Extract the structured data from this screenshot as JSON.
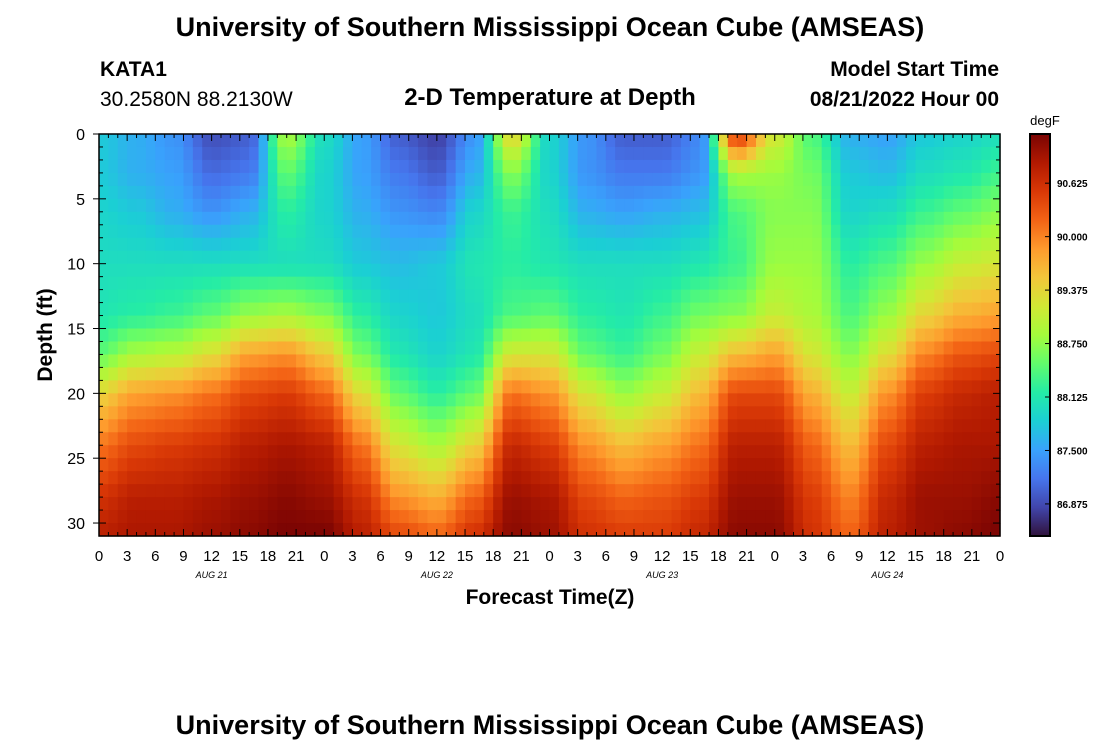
{
  "page": {
    "title": "University of Southern Mississippi Ocean Cube (AMSEAS)",
    "title_repeat": "University of Southern Mississippi Ocean Cube (AMSEAS)",
    "station_id": "KATA1",
    "location": "30.2580N  88.2130W",
    "model_start_label": "Model Start Time",
    "model_start_value": "08/21/2022 Hour 00"
  },
  "chart_data": {
    "type": "heatmap",
    "title": "2-D Temperature at Depth",
    "xlabel": "Forecast Time(Z)",
    "ylabel": "Depth (ft)",
    "x_range_hours": [
      0,
      96
    ],
    "y_range_ft": [
      0,
      31
    ],
    "x_tick_labels": [
      "0",
      "3",
      "6",
      "9",
      "12",
      "15",
      "18",
      "21",
      "0",
      "3",
      "6",
      "9",
      "12",
      "15",
      "18",
      "21",
      "0",
      "3",
      "6",
      "9",
      "12",
      "15",
      "18",
      "21",
      "0",
      "3",
      "6",
      "9",
      "12",
      "15",
      "18",
      "21",
      "0"
    ],
    "y_ticks": [
      0,
      5,
      10,
      15,
      20,
      25,
      30
    ],
    "y_tick_labels": [
      "0",
      "5",
      "10",
      "15",
      "20",
      "25",
      "30"
    ],
    "day_labels": [
      {
        "label": "AUG 21",
        "hour": 12
      },
      {
        "label": "AUG 22",
        "hour": 36
      },
      {
        "label": "AUG 23",
        "hour": 60
      },
      {
        "label": "AUG 24",
        "hour": 84
      }
    ],
    "colorbar": {
      "unit": "degF",
      "min": 86.5,
      "max": 91.2,
      "tick_labels": [
        "90.625",
        "90.000",
        "89.375",
        "88.750",
        "88.125",
        "87.500",
        "86.875"
      ],
      "tick_values": [
        90.625,
        90.0,
        89.375,
        88.75,
        88.125,
        87.5,
        86.875
      ],
      "colors": [
        "#30123b",
        "#4145ab",
        "#4675ed",
        "#39a2fc",
        "#1bcfd4",
        "#24eca6",
        "#61fc6c",
        "#a4fc3b",
        "#d1e834",
        "#f3c63a",
        "#fe9b2d",
        "#f36315",
        "#d93806",
        "#b11901",
        "#7a0403"
      ]
    },
    "profile_depths_ft": [
      0,
      3,
      6,
      10,
      14,
      17,
      20,
      24,
      28,
      31
    ],
    "time_profiles": [
      {
        "hour": 0,
        "temps": [
          87.8,
          87.8,
          87.9,
          88.0,
          88.1,
          88.5,
          89.4,
          90.1,
          90.6,
          90.8
        ]
      },
      {
        "hour": 4,
        "temps": [
          87.6,
          87.6,
          87.8,
          88.0,
          88.2,
          88.9,
          89.8,
          90.4,
          90.8,
          90.9
        ]
      },
      {
        "hour": 8,
        "temps": [
          87.4,
          87.5,
          87.6,
          88.0,
          88.3,
          89.0,
          89.9,
          90.5,
          90.8,
          90.9
        ]
      },
      {
        "hour": 12,
        "temps": [
          86.9,
          87.1,
          87.4,
          88.0,
          88.5,
          89.3,
          90.1,
          90.6,
          90.9,
          91.0
        ]
      },
      {
        "hour": 16,
        "temps": [
          87.0,
          87.2,
          87.6,
          88.0,
          88.8,
          89.8,
          90.4,
          90.8,
          91.0,
          91.1
        ]
      },
      {
        "hour": 20,
        "temps": [
          88.9,
          88.5,
          88.2,
          88.0,
          88.9,
          89.9,
          90.5,
          90.9,
          91.1,
          91.2
        ]
      },
      {
        "hour": 24,
        "temps": [
          88.0,
          87.9,
          87.9,
          88.0,
          88.7,
          89.5,
          90.2,
          90.8,
          91.0,
          91.2
        ]
      },
      {
        "hour": 28,
        "temps": [
          87.5,
          87.5,
          87.6,
          87.8,
          88.2,
          88.6,
          89.3,
          90.1,
          90.6,
          90.8
        ]
      },
      {
        "hour": 32,
        "temps": [
          87.0,
          87.2,
          87.4,
          87.7,
          87.9,
          88.1,
          88.5,
          89.2,
          89.9,
          90.4
        ]
      },
      {
        "hour": 36,
        "temps": [
          86.8,
          87.0,
          87.3,
          87.8,
          87.8,
          87.9,
          88.2,
          88.9,
          89.7,
          90.2
        ]
      },
      {
        "hour": 40,
        "temps": [
          87.4,
          87.6,
          87.9,
          88.1,
          88.0,
          88.1,
          88.5,
          89.4,
          90.2,
          90.6
        ]
      },
      {
        "hour": 44,
        "temps": [
          89.4,
          88.7,
          88.3,
          88.2,
          88.4,
          89.2,
          90.1,
          90.7,
          91.0,
          91.1
        ]
      },
      {
        "hour": 48,
        "temps": [
          87.9,
          87.9,
          88.0,
          88.1,
          88.5,
          89.2,
          89.9,
          90.5,
          90.9,
          91.0
        ]
      },
      {
        "hour": 52,
        "temps": [
          87.4,
          87.4,
          87.6,
          88.0,
          88.2,
          88.5,
          89.2,
          89.9,
          90.4,
          90.6
        ]
      },
      {
        "hour": 56,
        "temps": [
          87.0,
          87.2,
          87.5,
          88.0,
          88.1,
          88.3,
          88.8,
          89.6,
          90.2,
          90.5
        ]
      },
      {
        "hour": 60,
        "temps": [
          87.0,
          87.2,
          87.6,
          88.0,
          88.3,
          88.6,
          89.1,
          89.8,
          90.3,
          90.5
        ]
      },
      {
        "hour": 64,
        "temps": [
          87.3,
          87.4,
          87.7,
          88.1,
          88.6,
          89.1,
          89.6,
          90.1,
          90.5,
          90.7
        ]
      },
      {
        "hour": 68,
        "temps": [
          90.6,
          88.9,
          88.4,
          88.3,
          88.7,
          89.6,
          90.4,
          90.8,
          91.0,
          91.1
        ]
      },
      {
        "hour": 72,
        "temps": [
          89.2,
          88.8,
          88.7,
          88.8,
          89.1,
          89.8,
          90.4,
          90.8,
          91.0,
          91.1
        ]
      },
      {
        "hour": 76,
        "temps": [
          88.4,
          88.6,
          88.7,
          88.8,
          88.9,
          89.2,
          89.7,
          90.2,
          90.5,
          90.6
        ]
      },
      {
        "hour": 80,
        "temps": [
          87.6,
          87.8,
          87.9,
          88.2,
          88.4,
          88.7,
          89.1,
          89.6,
          90.0,
          90.2
        ]
      },
      {
        "hour": 84,
        "temps": [
          87.5,
          87.7,
          88.0,
          88.4,
          88.8,
          89.3,
          89.9,
          90.4,
          90.7,
          90.8
        ]
      },
      {
        "hour": 88,
        "temps": [
          87.8,
          88.0,
          88.3,
          88.8,
          89.4,
          90.0,
          90.5,
          90.8,
          91.0,
          91.0
        ]
      },
      {
        "hour": 92,
        "temps": [
          87.9,
          88.1,
          88.5,
          89.1,
          89.7,
          90.3,
          90.7,
          90.9,
          91.0,
          91.1
        ]
      },
      {
        "hour": 96,
        "temps": [
          88.0,
          88.3,
          88.7,
          89.2,
          89.8,
          90.4,
          90.8,
          90.9,
          91.1,
          91.2
        ]
      }
    ]
  }
}
